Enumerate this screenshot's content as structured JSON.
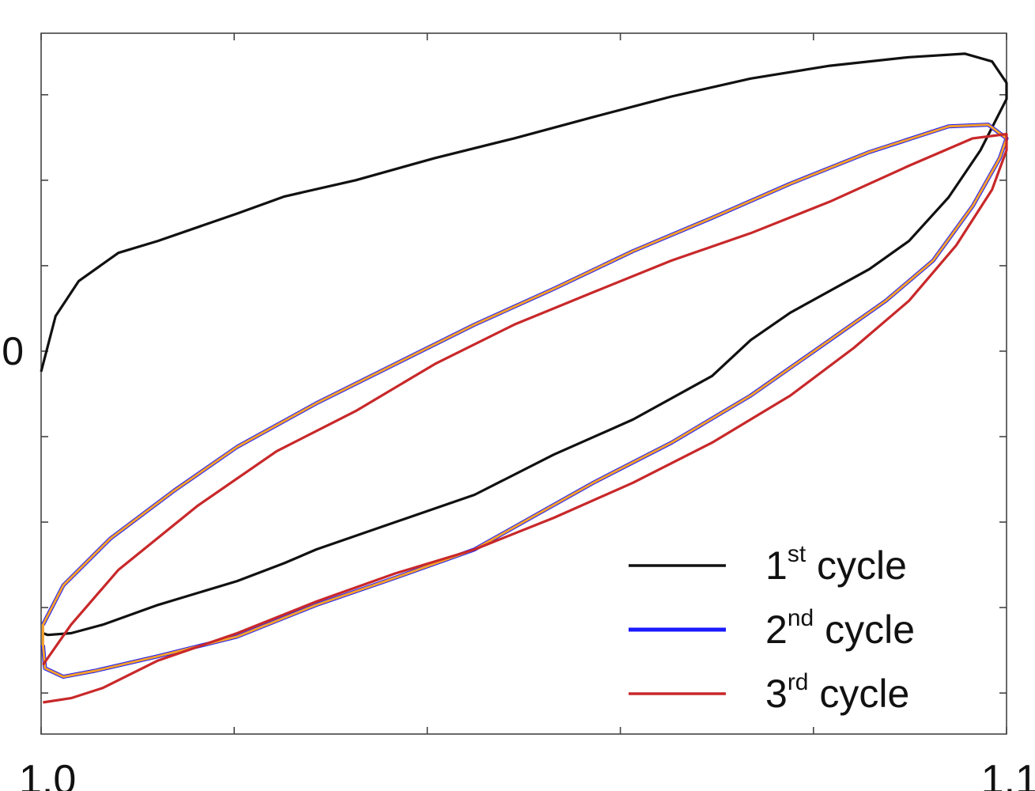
{
  "chart_data": {
    "type": "line",
    "xlim": [
      1.0,
      1.1
    ],
    "xticks": [
      {
        "value": 1.0,
        "label": "1.0"
      },
      {
        "value": 1.1,
        "label": "1.1"
      }
    ],
    "xminorticks": [
      1.02,
      1.04,
      1.06,
      1.08
    ],
    "ylim": [
      -4.48,
      3.72
    ],
    "yticks": [
      0
    ],
    "yminorticks": [
      -4,
      -3,
      -2,
      -1,
      1,
      2,
      3
    ],
    "legend": "lower right",
    "series": [
      {
        "name": "1st cycle",
        "color": "#111111",
        "x": [
          1.0,
          1.0015,
          1.0039,
          1.008,
          1.0121,
          1.0203,
          1.0252,
          1.0326,
          1.0408,
          1.049,
          1.0572,
          1.0653,
          1.0735,
          1.0817,
          1.0899,
          1.0957,
          1.0985,
          1.1,
          1.1,
          1.0973,
          1.094,
          1.0899,
          1.0858,
          1.0776,
          1.0735,
          1.0695,
          1.0613,
          1.0531,
          1.0449,
          1.0367,
          1.0285,
          1.0252,
          1.0203,
          1.0121,
          1.0064,
          1.0031,
          1.0007,
          1.0002
        ],
        "y": [
          -0.24,
          0.41,
          0.82,
          1.15,
          1.29,
          1.61,
          1.81,
          2.0,
          2.26,
          2.49,
          2.74,
          2.98,
          3.19,
          3.34,
          3.44,
          3.48,
          3.39,
          3.14,
          2.95,
          2.35,
          1.8,
          1.29,
          0.96,
          0.45,
          0.13,
          -0.29,
          -0.8,
          -1.21,
          -1.68,
          -2.0,
          -2.32,
          -2.48,
          -2.69,
          -2.97,
          -3.2,
          -3.3,
          -3.32,
          -3.3
        ]
      },
      {
        "name": "2nd cycle",
        "color": "#1a1aff",
        "highlight": "#f5a02c",
        "x": [
          1.0002,
          1.0023,
          1.0072,
          1.0138,
          1.0203,
          1.0285,
          1.0367,
          1.0449,
          1.0531,
          1.0613,
          1.0695,
          1.0776,
          1.0858,
          1.094,
          1.0981,
          1.1,
          1.0993,
          1.0965,
          1.0924,
          1.0875,
          1.0817,
          1.0735,
          1.0653,
          1.0572,
          1.0449,
          1.0367,
          1.0285,
          1.0203,
          1.0121,
          1.0056,
          1.0023,
          1.0004,
          1.0002
        ],
        "y": [
          -3.2,
          -2.74,
          -2.19,
          -1.63,
          -1.12,
          -0.61,
          -0.15,
          0.31,
          0.73,
          1.17,
          1.56,
          1.96,
          2.33,
          2.63,
          2.65,
          2.49,
          2.26,
          1.7,
          1.06,
          0.59,
          0.13,
          -0.52,
          -1.07,
          -1.54,
          -2.32,
          -2.65,
          -2.97,
          -3.34,
          -3.57,
          -3.74,
          -3.81,
          -3.71,
          -3.44
        ]
      },
      {
        "name": "3rd cycle",
        "color": "#c8282a",
        "x": [
          1.0002,
          1.0031,
          1.008,
          1.0162,
          1.0244,
          1.0326,
          1.0408,
          1.049,
          1.0572,
          1.0653,
          1.0735,
          1.0817,
          1.0899,
          1.0965,
          1.1,
          1.1,
          1.0985,
          1.0948,
          1.0899,
          1.0842,
          1.0776,
          1.0695,
          1.0613,
          1.0531,
          1.0449,
          1.0367,
          1.0285,
          1.0203,
          1.0121,
          1.0064,
          1.0031,
          1.0002
        ],
        "y": [
          -3.67,
          -3.2,
          -2.56,
          -1.81,
          -1.17,
          -0.7,
          -0.15,
          0.31,
          0.69,
          1.06,
          1.38,
          1.75,
          2.17,
          2.49,
          2.54,
          2.35,
          1.89,
          1.24,
          0.59,
          0.04,
          -0.52,
          -1.07,
          -1.54,
          -1.95,
          -2.32,
          -2.6,
          -2.93,
          -3.3,
          -3.62,
          -3.94,
          -4.06,
          -4.11
        ]
      }
    ]
  }
}
